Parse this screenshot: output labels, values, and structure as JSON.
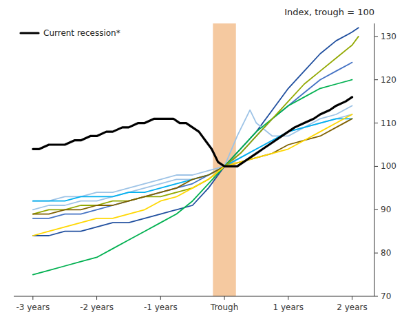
{
  "chart_data": {
    "type": "line",
    "title": "Index, trough = 100",
    "xlim": [
      -3.3,
      2.35
    ],
    "ylim": [
      70,
      133
    ],
    "xticks": [
      {
        "value": -3,
        "label": "-3 years"
      },
      {
        "value": -2,
        "label": "-2 years"
      },
      {
        "value": -1,
        "label": "-1 years"
      },
      {
        "value": 0,
        "label": "Trough"
      },
      {
        "value": 1,
        "label": "1 years"
      },
      {
        "value": 2,
        "label": "2 years"
      }
    ],
    "yticks": [
      70,
      80,
      90,
      100,
      110,
      120,
      130
    ],
    "grid": false,
    "legend": "upper left",
    "band": {
      "x": [
        -0.18,
        0.18
      ],
      "color": "#f5c9a0"
    },
    "series": [
      {
        "color": "#1F4E9E",
        "x": [
          -3.0,
          -2.75,
          -2.5,
          -2.25,
          -2.0,
          -1.75,
          -1.5,
          -1.25,
          -1.0,
          -0.75,
          -0.5,
          -0.25,
          0.0,
          0.25,
          0.5,
          0.75,
          1.0,
          1.25,
          1.5,
          1.75,
          2.0,
          2.1
        ],
        "values": [
          84,
          84,
          85,
          85,
          86,
          87,
          87,
          88,
          89,
          90,
          91,
          95,
          100,
          104,
          108,
          113,
          118,
          122,
          126,
          129,
          131,
          132
        ]
      },
      {
        "color": "#4472C4",
        "x": [
          -3.0,
          -2.75,
          -2.5,
          -2.25,
          -2.0,
          -1.75,
          -1.5,
          -1.25,
          -1.0,
          -0.75,
          -0.5,
          -0.25,
          0.0,
          0.25,
          0.5,
          0.75,
          1.0,
          1.25,
          1.5,
          1.75,
          2.0
        ],
        "values": [
          88,
          88,
          89,
          89,
          90,
          91,
          92,
          93,
          94,
          95,
          96,
          98,
          100,
          103,
          107,
          111,
          114,
          117,
          120,
          122,
          124
        ]
      },
      {
        "color": "#9DC3E6",
        "x": [
          -3.0,
          -2.75,
          -2.5,
          -2.25,
          -2.0,
          -1.75,
          -1.5,
          -1.25,
          -1.0,
          -0.75,
          -0.5,
          -0.25,
          0.0,
          0.2,
          0.4,
          0.5,
          0.75,
          1.0,
          1.25,
          1.5,
          1.75,
          2.0
        ],
        "values": [
          92,
          92,
          93,
          93,
          94,
          94,
          95,
          96,
          97,
          98,
          98,
          99,
          100,
          107,
          113,
          110,
          107,
          107,
          109,
          111,
          112,
          114
        ]
      },
      {
        "color": "#9DC3E6",
        "x": [
          -3.0,
          -2.75,
          -2.5,
          -2.25,
          -2.0,
          -1.75,
          -1.5,
          -1.25,
          -1.0,
          -0.75,
          -0.5,
          -0.25,
          0.0,
          0.25,
          0.5,
          0.75,
          1.0,
          1.25,
          1.5,
          1.75,
          2.0
        ],
        "values": [
          90,
          91,
          91,
          92,
          92,
          93,
          94,
          95,
          96,
          97,
          97,
          98,
          100,
          102,
          104,
          106,
          108,
          109,
          110,
          111,
          112
        ]
      },
      {
        "color": "#00B050",
        "x": [
          -3.0,
          -2.75,
          -2.5,
          -2.25,
          -2.0,
          -1.75,
          -1.5,
          -1.25,
          -1.0,
          -0.75,
          -0.5,
          -0.25,
          0.0,
          0.25,
          0.5,
          0.75,
          1.0,
          1.25,
          1.5,
          1.75,
          2.0
        ],
        "values": [
          75,
          76,
          77,
          78,
          79,
          81,
          83,
          85,
          87,
          89,
          92,
          96,
          100,
          104,
          108,
          111,
          114,
          116,
          118,
          119,
          120
        ]
      },
      {
        "color": "#00B0F0",
        "x": [
          -3.0,
          -2.75,
          -2.5,
          -2.25,
          -2.0,
          -1.75,
          -1.5,
          -1.25,
          -1.0,
          -0.75,
          -0.5,
          -0.25,
          0.0,
          0.25,
          0.5,
          0.75,
          1.0,
          1.25,
          1.5,
          1.75,
          2.0
        ],
        "values": [
          92,
          92,
          92,
          93,
          93,
          93,
          94,
          94,
          95,
          96,
          97,
          98,
          100,
          102,
          104,
          106,
          108,
          109,
          110,
          111,
          111
        ]
      },
      {
        "color": "#92A800",
        "x": [
          -3.0,
          -2.75,
          -2.5,
          -2.25,
          -2.0,
          -1.75,
          -1.5,
          -1.25,
          -1.0,
          -0.75,
          -0.5,
          -0.25,
          0.0,
          0.25,
          0.5,
          0.75,
          1.0,
          1.25,
          1.5,
          1.75,
          2.0,
          2.1
        ],
        "values": [
          89,
          90,
          90,
          91,
          91,
          92,
          92,
          93,
          93,
          94,
          95,
          97,
          100,
          103,
          107,
          111,
          115,
          119,
          122,
          125,
          128,
          130
        ]
      },
      {
        "color": "#7F6000",
        "x": [
          -3.0,
          -2.75,
          -2.5,
          -2.25,
          -2.0,
          -1.75,
          -1.5,
          -1.25,
          -1.0,
          -0.75,
          -0.5,
          -0.25,
          0.0,
          0.25,
          0.5,
          0.75,
          1.0,
          1.25,
          1.5,
          1.75,
          2.0
        ],
        "values": [
          89,
          89,
          90,
          90,
          91,
          91,
          92,
          93,
          94,
          95,
          97,
          98,
          100,
          101,
          102,
          103,
          105,
          106,
          107,
          109,
          111
        ]
      },
      {
        "color": "#FFD700",
        "x": [
          -3.0,
          -2.75,
          -2.5,
          -2.25,
          -2.0,
          -1.75,
          -1.5,
          -1.25,
          -1.0,
          -0.75,
          -0.5,
          -0.25,
          0.0,
          0.25,
          0.5,
          0.75,
          1.0,
          1.25,
          1.5,
          1.75,
          2.0
        ],
        "values": [
          84,
          85,
          86,
          87,
          88,
          88,
          89,
          90,
          92,
          93,
          95,
          97,
          100,
          101,
          102,
          103,
          104,
          106,
          108,
          110,
          112
        ]
      },
      {
        "name": "Current recession*",
        "color": "#000000",
        "x": [
          -3.0,
          -2.9,
          -2.75,
          -2.6,
          -2.5,
          -2.35,
          -2.25,
          -2.1,
          -2.0,
          -1.85,
          -1.75,
          -1.6,
          -1.5,
          -1.35,
          -1.25,
          -1.1,
          -1.0,
          -0.9,
          -0.8,
          -0.7,
          -0.6,
          -0.5,
          -0.4,
          -0.3,
          -0.2,
          -0.1,
          0.0,
          0.1,
          0.2,
          0.3,
          0.4,
          0.5,
          0.6,
          0.7,
          0.8,
          0.9,
          1.0,
          1.1,
          1.25,
          1.4,
          1.5,
          1.65,
          1.75,
          1.9,
          2.0
        ],
        "values": [
          104,
          104,
          105,
          105,
          105,
          106,
          106,
          107,
          107,
          108,
          108,
          109,
          109,
          110,
          110,
          111,
          111,
          111,
          111,
          110,
          110,
          109,
          108,
          106,
          104,
          101,
          100,
          100,
          100,
          101,
          102,
          103,
          104,
          105,
          106,
          107,
          108,
          109,
          110,
          111,
          112,
          113,
          114,
          115,
          116
        ]
      }
    ]
  }
}
